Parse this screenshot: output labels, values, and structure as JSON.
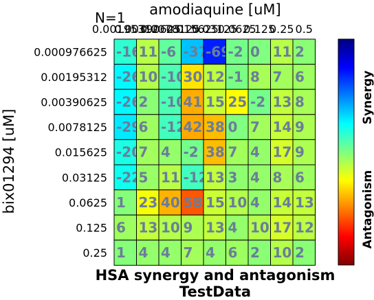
{
  "chart_data": {
    "type": "heatmap",
    "corner_label": "N=1",
    "xlabel": "amodiaquine [uM]",
    "ylabel": "bix01294 [uM]",
    "title": "HSA synergy and antagonism",
    "subtitle": "TestData",
    "x_categories": [
      "0.00195312",
      "0.00390625",
      "0.0078125",
      "0.015625",
      "0.03125",
      "0.0625",
      "0.125",
      "0.25",
      "0.5"
    ],
    "y_categories": [
      "0.000976625",
      "0.00195312",
      "0.00390625",
      "0.0078125",
      "0.015625",
      "0.03125",
      "0.0625",
      "0.125",
      "0.25"
    ],
    "values": [
      [
        -16,
        11,
        -6,
        -37,
        -69,
        -2,
        0,
        11,
        2
      ],
      [
        -26,
        10,
        -10,
        30,
        12,
        -1,
        8,
        7,
        6
      ],
      [
        -26,
        2,
        -10,
        41,
        15,
        25,
        -2,
        13,
        8
      ],
      [
        -29,
        6,
        -12,
        42,
        38,
        0,
        7,
        14,
        9
      ],
      [
        -20,
        7,
        4,
        -2,
        38,
        7,
        4,
        17,
        9
      ],
      [
        -22,
        5,
        11,
        -12,
        13,
        3,
        4,
        8,
        6
      ],
      [
        1,
        23,
        40,
        58,
        15,
        10,
        4,
        14,
        13
      ],
      [
        6,
        13,
        10,
        9,
        13,
        4,
        10,
        17,
        12
      ],
      [
        1,
        4,
        4,
        7,
        4,
        6,
        2,
        10,
        2
      ]
    ],
    "colorbar": {
      "top_label": "Synergy",
      "bottom_label": "Antagonism",
      "colormap": "jet"
    },
    "value_text_color": "#6a7d9a"
  }
}
